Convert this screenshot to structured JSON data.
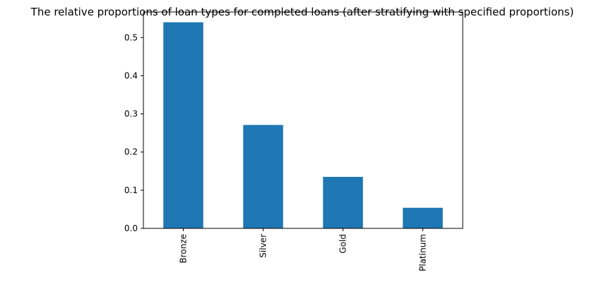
{
  "chart_data": {
    "type": "bar",
    "title": "The relative proportions of loan types for completed loans (after stratifying with specified proportions)",
    "xlabel": "",
    "ylabel": "",
    "categories": [
      "Bronze",
      "Silver",
      "Gold",
      "Platinum"
    ],
    "values": [
      0.54,
      0.271,
      0.135,
      0.054
    ],
    "ylim": [
      0,
      0.567
    ],
    "yticks": [
      0.0,
      0.1,
      0.2,
      0.3,
      0.4,
      0.5
    ],
    "ytick_labels": [
      "0.0",
      "0.1",
      "0.2",
      "0.3",
      "0.4",
      "0.5"
    ],
    "bar_color": "#1f77b4",
    "grid": false,
    "legend": "none"
  }
}
